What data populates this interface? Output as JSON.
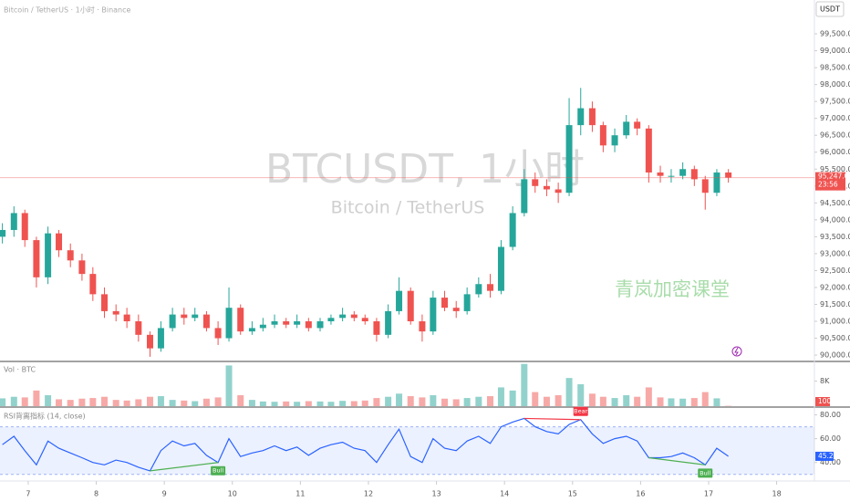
{
  "chart_data": {
    "type": "candlestick",
    "header": "Bitcoin / TetherUS · 1小时 · Binance",
    "currency": "USDT",
    "title": "BTCUSDT, 1小时",
    "subtitle": "Bitcoin / TetherUS",
    "watermark": "青岚加密课堂",
    "up_color": "#26a69a",
    "down_color": "#ef5350",
    "x": [
      6.62,
      6.79,
      6.95,
      7.12,
      7.29,
      7.45,
      7.62,
      7.79,
      7.95,
      8.12,
      8.29,
      8.45,
      8.62,
      8.79,
      8.95,
      9.12,
      9.29,
      9.45,
      9.62,
      9.79,
      9.95,
      10.12,
      10.29,
      10.45,
      10.62,
      10.79,
      10.95,
      11.12,
      11.29,
      11.45,
      11.62,
      11.79,
      11.95,
      12.12,
      12.29,
      12.45,
      12.62,
      12.79,
      12.95,
      13.12,
      13.29,
      13.45,
      13.62,
      13.79,
      13.95,
      14.12,
      14.29,
      14.45,
      14.62,
      14.79,
      14.95,
      15.12,
      15.29,
      15.45,
      15.62,
      15.79,
      15.95,
      16.12,
      16.29,
      16.45,
      16.62,
      16.79,
      16.95,
      17.12,
      17.29
    ],
    "open": [
      93500,
      93700,
      94200,
      93400,
      92300,
      93600,
      93100,
      92800,
      92400,
      91800,
      91300,
      91200,
      91000,
      90600,
      90200,
      90800,
      91200,
      91100,
      91200,
      90800,
      90500,
      91400,
      90700,
      90800,
      90900,
      91000,
      90900,
      91000,
      90800,
      91000,
      91100,
      91200,
      91100,
      91000,
      90600,
      91300,
      91900,
      91000,
      90700,
      91700,
      91400,
      91300,
      91800,
      92100,
      91900,
      93200,
      94200,
      95200,
      95000,
      94900,
      94800,
      96800,
      97300,
      96800,
      96200,
      96500,
      96900,
      96700,
      95400,
      95300,
      95300,
      95500,
      95200,
      94800,
      95400
    ],
    "high": [
      93900,
      94400,
      94300,
      93500,
      93800,
      93700,
      93300,
      93000,
      92600,
      92000,
      91500,
      91400,
      91200,
      90700,
      91000,
      91400,
      91400,
      91400,
      91300,
      91000,
      92000,
      91500,
      91000,
      91100,
      91200,
      91100,
      91200,
      91100,
      91100,
      91200,
      91400,
      91300,
      91200,
      91100,
      91500,
      92300,
      92000,
      91200,
      91900,
      91900,
      91600,
      92000,
      92300,
      92400,
      93400,
      94400,
      95500,
      95400,
      95200,
      95100,
      97600,
      97900,
      97500,
      96900,
      96700,
      97100,
      97000,
      96800,
      95600,
      95500,
      95700,
      95600,
      95300,
      95500,
      95500
    ],
    "low": [
      93300,
      93500,
      93200,
      92000,
      92100,
      92900,
      92600,
      92200,
      91600,
      91100,
      91000,
      90800,
      90400,
      89950,
      90100,
      90700,
      90900,
      91000,
      90700,
      90300,
      90400,
      90600,
      90600,
      90700,
      90800,
      90800,
      90800,
      90700,
      90700,
      90900,
      91000,
      91000,
      90900,
      90400,
      90500,
      91200,
      90900,
      90400,
      90600,
      91300,
      91100,
      91200,
      91700,
      91700,
      91800,
      93100,
      94100,
      94800,
      94700,
      94500,
      94700,
      96500,
      96600,
      96000,
      96000,
      96400,
      96500,
      95100,
      95100,
      95100,
      95200,
      95000,
      94300,
      94700,
      95100
    ],
    "close": [
      93700,
      94200,
      93400,
      92300,
      93600,
      93100,
      92800,
      92400,
      91800,
      91300,
      91200,
      91000,
      90600,
      90200,
      90800,
      91200,
      91100,
      91200,
      90800,
      90500,
      91400,
      90700,
      90800,
      90900,
      91000,
      90900,
      91000,
      90800,
      91000,
      91100,
      91200,
      91100,
      91000,
      90600,
      91300,
      91900,
      91000,
      90700,
      91700,
      91400,
      91300,
      91800,
      92100,
      91900,
      93200,
      94200,
      95200,
      95000,
      94900,
      94800,
      96800,
      97300,
      96800,
      96200,
      96500,
      96900,
      96700,
      95400,
      95300,
      95300,
      95500,
      95200,
      94800,
      95400,
      95247.01
    ],
    "xlim": [
      6.585,
      18.555
    ],
    "xticks": [
      7,
      8,
      9,
      10,
      11,
      12,
      13,
      14,
      15,
      16,
      17,
      18
    ],
    "ylim": [
      89840,
      100500
    ],
    "yticks": [
      {
        "value": 90000,
        "label": "90,000.00"
      },
      {
        "value": 90500,
        "label": "90,500.00"
      },
      {
        "value": 91000,
        "label": "91,000.00"
      },
      {
        "value": 91500,
        "label": "91,500.00"
      },
      {
        "value": 92000,
        "label": "92,000.00"
      },
      {
        "value": 92500,
        "label": "92,500.00"
      },
      {
        "value": 93000,
        "label": "93,000.00"
      },
      {
        "value": 93500,
        "label": "93,500.00"
      },
      {
        "value": 94000,
        "label": "94,000.00"
      },
      {
        "value": 94500,
        "label": "94,500.00"
      },
      {
        "value": 95000,
        "label": "95,000.00"
      },
      {
        "value": 95500,
        "label": "95,500.00"
      },
      {
        "value": 96000,
        "label": "96,000.00"
      },
      {
        "value": 96500,
        "label": "96,500.00"
      },
      {
        "value": 97000,
        "label": "97,000.00"
      },
      {
        "value": 97500,
        "label": "97,500.00"
      },
      {
        "value": 98000,
        "label": "98,000.00"
      },
      {
        "value": 98500,
        "label": "98,500.00"
      },
      {
        "value": 99000,
        "label": "99,000.00"
      },
      {
        "value": 99500,
        "label": "99,500.00"
      }
    ],
    "last_price": {
      "value": 95247.01,
      "label": "95,247.01"
    },
    "countdown": "23:56",
    "volume": {
      "label": "Vol · BTC",
      "values": [
        2500,
        3000,
        2800,
        5000,
        3500,
        2200,
        2000,
        2400,
        2600,
        3000,
        2000,
        1800,
        2200,
        3000,
        3200,
        2000,
        1800,
        1600,
        2400,
        2800,
        13000,
        3500,
        2000,
        1500,
        1400,
        1500,
        1400,
        1600,
        1500,
        1400,
        1700,
        1600,
        1800,
        2600,
        3000,
        4000,
        3200,
        2800,
        3500,
        2400,
        2200,
        2600,
        3000,
        3200,
        6000,
        5000,
        13500,
        4500,
        3000,
        3500,
        9000,
        7000,
        4000,
        3000,
        2600,
        3500,
        3000,
        6000,
        2800,
        2500,
        2400,
        2600,
        4500,
        2500,
        100
      ],
      "ylim": [
        0,
        14000
      ],
      "yticks": [
        {
          "value": 8000,
          "label": "8K"
        }
      ]
    },
    "rsi": {
      "label": "RSI背离指标 (14, close)",
      "color": "#2962ff",
      "values": [
        55,
        62,
        50,
        38,
        58,
        52,
        48,
        44,
        40,
        38,
        42,
        40,
        36,
        33,
        50,
        58,
        54,
        56,
        46,
        40,
        60,
        45,
        48,
        50,
        54,
        50,
        53,
        46,
        52,
        55,
        57,
        52,
        50,
        40,
        55,
        68,
        45,
        40,
        60,
        52,
        50,
        58,
        62,
        56,
        70,
        74,
        77,
        70,
        66,
        64,
        72,
        76,
        64,
        56,
        60,
        62,
        58,
        44,
        44,
        45,
        48,
        44,
        38,
        52,
        45.21
      ],
      "ylim": [
        26,
        85
      ],
      "yticks": [
        {
          "value": 80,
          "label": "80.00"
        },
        {
          "value": 60,
          "label": "60.00"
        },
        {
          "value": 40,
          "label": "40.00"
        }
      ],
      "band": [
        30,
        70
      ],
      "divergences": [
        {
          "label": "Bull",
          "x": [
            8.79,
            9.79
          ],
          "values": [
            33,
            40
          ],
          "color": "#4caf50"
        },
        {
          "label": "Bear",
          "x": [
            14.29,
            15.12
          ],
          "values": [
            77,
            76
          ],
          "color": "#f23645"
        },
        {
          "label": "Bull",
          "x": [
            16.12,
            16.95
          ],
          "values": [
            44,
            38
          ],
          "color": "#4caf50"
        }
      ]
    }
  }
}
